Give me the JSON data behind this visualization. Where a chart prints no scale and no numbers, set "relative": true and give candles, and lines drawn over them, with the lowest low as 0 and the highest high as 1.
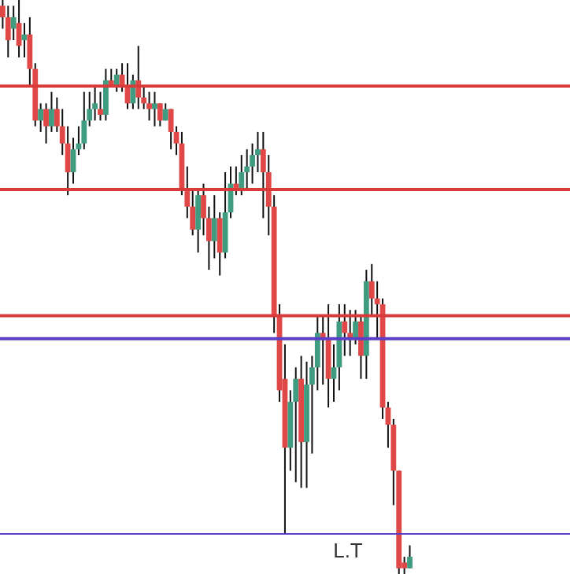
{
  "chart_data": {
    "type": "candlestick",
    "relative": true,
    "categories": [
      null,
      null,
      null,
      null,
      null,
      null,
      null,
      null,
      null,
      null,
      null,
      null,
      null,
      null,
      null,
      null,
      null,
      null,
      null,
      null,
      null,
      null,
      null,
      null,
      null,
      null,
      null,
      null,
      null,
      null,
      null,
      null,
      null,
      null,
      null,
      null,
      null,
      null,
      null,
      null,
      null,
      null,
      null,
      null,
      null,
      null,
      null,
      null,
      null,
      null,
      null,
      null,
      null,
      null,
      null,
      null,
      null,
      null,
      null,
      null,
      null,
      null,
      null,
      null,
      null,
      null,
      null,
      null,
      null,
      null,
      null,
      null,
      null,
      null,
      null,
      null
    ],
    "ohlc": [
      [
        0.99,
        1,
        0.95,
        0.97
      ],
      [
        0.97,
        0.99,
        0.9,
        0.93
      ],
      [
        0.95,
        0.99,
        0.93,
        0.97
      ],
      [
        0.96,
        1,
        0.9,
        0.92
      ],
      [
        0.93,
        0.96,
        0.9,
        0.94
      ],
      [
        0.94,
        0.97,
        0.85,
        0.88
      ],
      [
        0.88,
        0.89,
        0.78,
        0.79
      ],
      [
        0.79,
        0.82,
        0.77,
        0.81
      ],
      [
        0.81,
        0.82,
        0.75,
        0.78
      ],
      [
        0.78,
        0.84,
        0.77,
        0.81
      ],
      [
        0.81,
        0.83,
        0.77,
        0.78
      ],
      [
        0.78,
        0.81,
        0.73,
        0.75
      ],
      [
        0.75,
        0.78,
        0.66,
        0.7
      ],
      [
        0.7,
        0.76,
        0.68,
        0.74
      ],
      [
        0.74,
        0.78,
        0.73,
        0.75
      ],
      [
        0.75,
        0.84,
        0.74,
        0.79
      ],
      [
        0.79,
        0.84,
        0.78,
        0.81
      ],
      [
        0.81,
        0.85,
        0.79,
        0.82
      ],
      [
        0.81,
        0.84,
        0.79,
        0.8
      ],
      [
        0.8,
        0.88,
        0.79,
        0.86
      ],
      [
        0.86,
        0.88,
        0.85,
        0.85
      ],
      [
        0.85,
        0.88,
        0.84,
        0.87
      ],
      [
        0.87,
        0.89,
        0.84,
        0.85
      ],
      [
        0.85,
        0.89,
        0.81,
        0.82
      ],
      [
        0.82,
        0.87,
        0.81,
        0.86
      ],
      [
        0.86,
        0.92,
        0.81,
        0.83
      ],
      [
        0.83,
        0.85,
        0.81,
        0.82
      ],
      [
        0.82,
        0.84,
        0.79,
        0.81
      ],
      [
        0.81,
        0.84,
        0.78,
        0.82
      ],
      [
        0.82,
        0.82,
        0.78,
        0.79
      ],
      [
        0.79,
        0.82,
        0.79,
        0.81
      ],
      [
        0.81,
        0.81,
        0.74,
        0.77
      ],
      [
        0.77,
        0.78,
        0.73,
        0.75
      ],
      [
        0.75,
        0.77,
        0.66,
        0.67
      ],
      [
        0.67,
        0.71,
        0.62,
        0.64
      ],
      [
        0.64,
        0.67,
        0.59,
        0.6
      ],
      [
        0.6,
        0.67,
        0.56,
        0.66
      ],
      [
        0.66,
        0.68,
        0.59,
        0.62
      ],
      [
        0.62,
        0.64,
        0.53,
        0.58
      ],
      [
        0.58,
        0.66,
        0.55,
        0.62
      ],
      [
        0.62,
        0.63,
        0.52,
        0.56
      ],
      [
        0.56,
        0.7,
        0.55,
        0.63
      ],
      [
        0.63,
        0.71,
        0.62,
        0.68
      ],
      [
        0.68,
        0.71,
        0.66,
        0.67
      ],
      [
        0.67,
        0.73,
        0.66,
        0.7
      ],
      [
        0.7,
        0.74,
        0.67,
        0.71
      ],
      [
        0.71,
        0.75,
        0.68,
        0.73
      ],
      [
        0.73,
        0.77,
        0.7,
        0.74
      ],
      [
        0.74,
        0.77,
        0.62,
        0.7
      ],
      [
        0.7,
        0.73,
        0.59,
        0.64
      ],
      [
        0.64,
        0.66,
        0.42,
        0.45
      ],
      [
        0.45,
        0.47,
        0.3,
        0.32
      ],
      [
        0.34,
        0.4,
        0.07,
        0.22
      ],
      [
        0.22,
        0.32,
        0.18,
        0.3
      ],
      [
        0.3,
        0.36,
        0.16,
        0.34
      ],
      [
        0.34,
        0.38,
        0.15,
        0.23
      ],
      [
        0.23,
        0.37,
        0.15,
        0.33
      ],
      [
        0.33,
        0.38,
        0.21,
        0.36
      ],
      [
        0.36,
        0.45,
        0.32,
        0.42
      ],
      [
        0.42,
        0.45,
        0.33,
        0.41
      ],
      [
        0.41,
        0.47,
        0.29,
        0.34
      ],
      [
        0.34,
        0.4,
        0.3,
        0.36
      ],
      [
        0.36,
        0.47,
        0.32,
        0.44
      ],
      [
        0.44,
        0.47,
        0.38,
        0.42
      ],
      [
        0.42,
        0.46,
        0.38,
        0.41
      ],
      [
        0.41,
        0.46,
        0.4,
        0.44
      ],
      [
        0.44,
        0.45,
        0.34,
        0.38
      ],
      [
        0.38,
        0.53,
        0.34,
        0.51
      ],
      [
        0.51,
        0.54,
        0.45,
        0.48
      ],
      [
        0.48,
        0.51,
        0.41,
        0.47
      ],
      [
        0.47,
        0.48,
        0.27,
        0.29
      ],
      [
        0.29,
        0.3,
        0.22,
        0.26
      ],
      [
        0.26,
        0.27,
        0.12,
        0.18
      ],
      [
        0.18,
        0.18,
        0,
        0.01
      ],
      [
        0.02,
        0.03,
        0,
        0.01
      ],
      [
        0.01,
        0.05,
        0.01,
        0.03
      ]
    ],
    "colors": [
      "#e04848",
      "#e04848",
      "#3f9c80",
      "#e04848",
      "#3f9c80",
      "#e04848",
      "#e04848",
      "#3f9c80",
      "#e04848",
      "#3f9c80",
      "#e04848",
      "#e04848",
      "#e04848",
      "#3f9c80",
      "#3f9c80",
      "#3f9c80",
      "#3f9c80",
      "#3f9c80",
      "#e04848",
      "#3f9c80",
      "#e04848",
      "#3f9c80",
      "#e04848",
      "#e04848",
      "#3f9c80",
      "#e04848",
      "#e04848",
      "#e04848",
      "#3f9c80",
      "#e04848",
      "#3f9c80",
      "#e04848",
      "#e04848",
      "#e04848",
      "#e04848",
      "#e04848",
      "#3f9c80",
      "#e04848",
      "#e04848",
      "#3f9c80",
      "#e04848",
      "#3f9c80",
      "#3f9c80",
      "#e04848",
      "#3f9c80",
      "#3f9c80",
      "#3f9c80",
      "#3f9c80",
      "#e04848",
      "#e04848",
      "#e04848",
      "#e04848",
      "#e04848",
      "#3f9c80",
      "#3f9c80",
      "#e04848",
      "#3f9c80",
      "#3f9c80",
      "#3f9c80",
      "#e04848",
      "#e04848",
      "#3f9c80",
      "#3f9c80",
      "#e04848",
      "#e04848",
      "#3f9c80",
      "#e04848",
      "#3f9c80",
      "#e04848",
      "#e04848",
      "#e04848",
      "#e04848",
      "#e04848",
      "#e04848",
      "#e04848",
      "#3f9c80"
    ],
    "ref_lines": [
      {
        "axis": "y",
        "value": 0.85,
        "color": "#d93b3b"
      },
      {
        "axis": "y",
        "value": 0.67,
        "color": "#d93b3b"
      },
      {
        "axis": "y",
        "value": 0.45,
        "color": "#d93b3b"
      },
      {
        "axis": "y",
        "value": 0.41,
        "color": "#5b3fc4"
      },
      {
        "axis": "y",
        "value": 0.07,
        "color": "#5b3fc4",
        "label": "L.T"
      }
    ]
  }
}
